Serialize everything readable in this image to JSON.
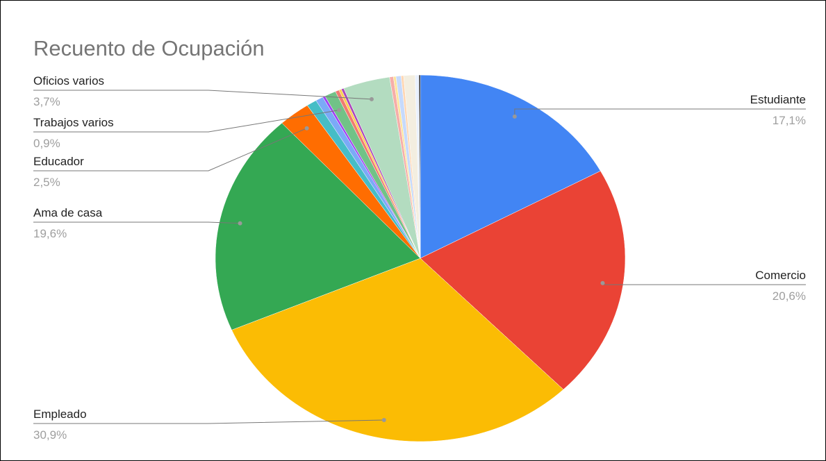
{
  "chart_data": {
    "type": "pie",
    "title": "Recuento de Ocupación",
    "categories": [
      "Estudiante",
      "Comercio",
      "Empleado",
      "Ama de casa",
      "Educador",
      null,
      null,
      null,
      "Trabajos varios",
      null,
      null,
      null,
      "Oficios varios",
      null,
      null,
      null,
      null,
      null,
      null,
      null
    ],
    "values": [
      17.1,
      20.6,
      30.9,
      19.6,
      2.5,
      0.8,
      0.6,
      0.2,
      0.9,
      0.3,
      0.2,
      0.2,
      3.7,
      0.3,
      0.2,
      0.4,
      0.2,
      0.9,
      0.3,
      0.1
    ],
    "value_labels": [
      "17,1%",
      "20,6%",
      "30,9%",
      "19,6%",
      "2,5%",
      null,
      null,
      null,
      "0,9%",
      null,
      null,
      null,
      "3,7%",
      null,
      null,
      null,
      null,
      null,
      null,
      null
    ],
    "colors": [
      "#4285f4",
      "#ea4335",
      "#fbbc04",
      "#34a853",
      "#ff6d01",
      "#46bdc6",
      "#7baaf7",
      "#a142f4",
      "#71c287",
      "#f07b72",
      "#fcd04f",
      "#ab47bc",
      "#b3dcc0",
      "#f6aea9",
      "#fde49b",
      "#c6dafc",
      "#ffd7b4",
      "#f3eee0",
      "#e8f0fe",
      "#000000"
    ]
  }
}
